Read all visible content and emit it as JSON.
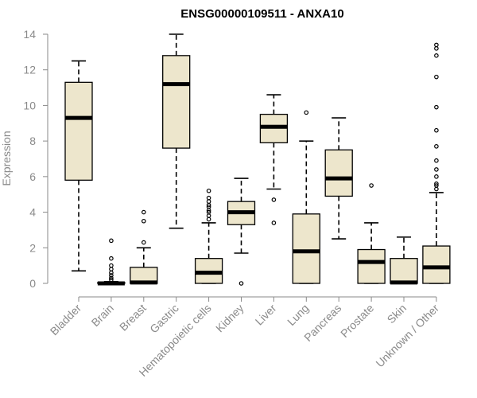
{
  "chart_data": {
    "type": "boxplot",
    "title": "ENSG00000109511 - ANXA10",
    "ylabel": "Expression",
    "xlabel": "",
    "ylim": [
      0,
      14
    ],
    "yticks": [
      0,
      2,
      4,
      6,
      8,
      10,
      12,
      14
    ],
    "box_fill": "#ede6cc",
    "box_stroke": "#000000",
    "grid": false,
    "categories": [
      "Bladder",
      "Brain",
      "Breast",
      "Gastric",
      "Hematopoietic cells",
      "Kidney",
      "Liver",
      "Lung",
      "Pancreas",
      "Prostate",
      "Skin",
      "Unknown / Other"
    ],
    "boxes": [
      {
        "category": "Bladder",
        "whisker_low": 0.7,
        "q1": 5.8,
        "median": 9.3,
        "q3": 11.3,
        "whisker_high": 12.5,
        "outliers": []
      },
      {
        "category": "Brain",
        "whisker_low": 0.0,
        "q1": 0.0,
        "median": 0.0,
        "q3": 0.05,
        "whisker_high": 0.1,
        "outliers": [
          0.2,
          0.3,
          0.45,
          0.6,
          0.8,
          1.0,
          1.4,
          2.4
        ]
      },
      {
        "category": "Breast",
        "whisker_low": 0.0,
        "q1": 0.0,
        "median": 0.05,
        "q3": 0.9,
        "whisker_high": 2.0,
        "outliers": [
          2.3,
          3.5,
          4.0
        ]
      },
      {
        "category": "Gastric",
        "whisker_low": 3.1,
        "q1": 7.6,
        "median": 11.2,
        "q3": 12.8,
        "whisker_high": 14.0,
        "outliers": []
      },
      {
        "category": "Hematopoietic cells",
        "whisker_low": 0.0,
        "q1": 0.0,
        "median": 0.6,
        "q3": 1.4,
        "whisker_high": 3.4,
        "outliers": [
          3.6,
          3.8,
          4.0,
          4.1,
          4.3,
          4.4,
          4.6,
          4.8,
          5.2
        ]
      },
      {
        "category": "Kidney",
        "whisker_low": 1.7,
        "q1": 3.3,
        "median": 4.0,
        "q3": 4.6,
        "whisker_high": 5.9,
        "outliers": [
          0.0
        ]
      },
      {
        "category": "Liver",
        "whisker_low": 5.3,
        "q1": 7.9,
        "median": 8.8,
        "q3": 9.5,
        "whisker_high": 10.6,
        "outliers": [
          3.4,
          4.7
        ]
      },
      {
        "category": "Lung",
        "whisker_low": 0.0,
        "q1": 0.0,
        "median": 1.8,
        "q3": 3.9,
        "whisker_high": 8.0,
        "outliers": [
          9.6
        ]
      },
      {
        "category": "Pancreas",
        "whisker_low": 2.5,
        "q1": 4.9,
        "median": 5.9,
        "q3": 7.5,
        "whisker_high": 9.3,
        "outliers": []
      },
      {
        "category": "Prostate",
        "whisker_low": 0.0,
        "q1": 0.0,
        "median": 1.2,
        "q3": 1.9,
        "whisker_high": 3.4,
        "outliers": [
          5.5
        ]
      },
      {
        "category": "Skin",
        "whisker_low": 0.0,
        "q1": 0.0,
        "median": 0.05,
        "q3": 1.4,
        "whisker_high": 2.6,
        "outliers": []
      },
      {
        "category": "Unknown / Other",
        "whisker_low": 0.0,
        "q1": 0.0,
        "median": 0.9,
        "q3": 2.1,
        "whisker_high": 5.1,
        "outliers": [
          5.3,
          5.5,
          5.6,
          6.0,
          6.4,
          6.9,
          7.7,
          8.6,
          9.9,
          11.6,
          12.8,
          13.2,
          13.4
        ]
      }
    ]
  }
}
